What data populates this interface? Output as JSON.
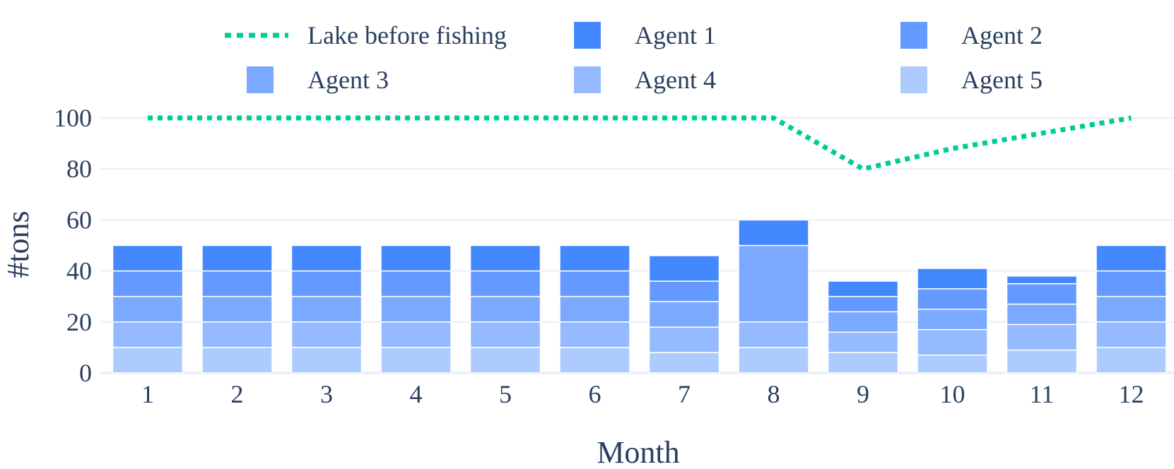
{
  "chart_data": {
    "type": "bar",
    "stacked": true,
    "xlabel": "Month",
    "ylabel": "#tons",
    "ylim": [
      0,
      110
    ],
    "y_ticks": [
      0,
      20,
      40,
      60,
      80,
      100
    ],
    "grid": true,
    "legend_position": "top",
    "categories": [
      "1",
      "2",
      "3",
      "4",
      "5",
      "6",
      "7",
      "8",
      "9",
      "10",
      "11",
      "12"
    ],
    "series": [
      {
        "name": "Agent 5",
        "color": "#aecbff",
        "values": [
          10,
          10,
          10,
          10,
          10,
          10,
          8,
          10,
          8,
          7,
          9,
          10
        ]
      },
      {
        "name": "Agent 4",
        "color": "#95baff",
        "values": [
          10,
          10,
          10,
          10,
          10,
          10,
          10,
          10,
          8,
          10,
          10,
          10
        ]
      },
      {
        "name": "Agent 3",
        "color": "#7ba9ff",
        "values": [
          10,
          10,
          10,
          10,
          10,
          10,
          10,
          30,
          8,
          8,
          8,
          10
        ]
      },
      {
        "name": "Agent 2",
        "color": "#6499ff",
        "values": [
          10,
          10,
          10,
          10,
          10,
          10,
          8,
          0,
          6,
          8,
          8,
          10
        ]
      },
      {
        "name": "Agent 1",
        "color": "#4488ff",
        "values": [
          10,
          10,
          10,
          10,
          10,
          10,
          10,
          10,
          6,
          8,
          3,
          10
        ]
      }
    ],
    "line": {
      "name": "Lake before fishing",
      "color": "#00cc96",
      "style": "dotted",
      "values": [
        100,
        100,
        100,
        100,
        100,
        100,
        100,
        100,
        80,
        88,
        94,
        100
      ]
    },
    "legend_order": [
      "Lake before fishing",
      "Agent 1",
      "Agent 2",
      "Agent 3",
      "Agent 4",
      "Agent 5"
    ]
  }
}
